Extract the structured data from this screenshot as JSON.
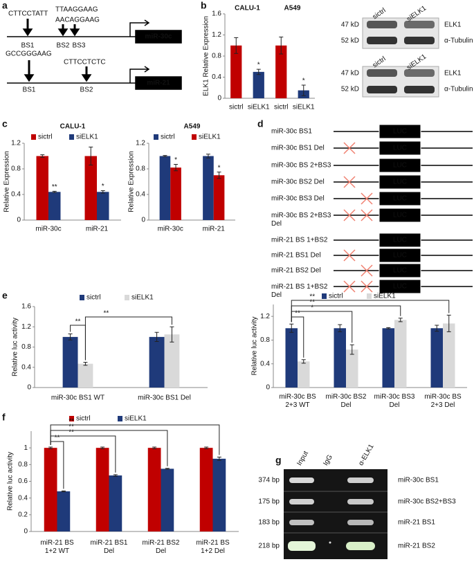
{
  "panel_labels": [
    "a",
    "b",
    "c",
    "d",
    "e",
    "f",
    "g"
  ],
  "panel_a": {
    "genes": [
      "miR-30c",
      "miR-21"
    ],
    "sequences": [
      "CTTCCTATT",
      "TTAAGGAAG",
      "AACAGGAAG",
      "GCCGGGAAG",
      "CTTCCTCTC"
    ],
    "sites": [
      "BS1",
      "BS2",
      "BS3",
      "BS1",
      "BS2"
    ]
  },
  "blots": {
    "lanes": [
      "sictrl",
      "siELK1"
    ],
    "sizes": [
      "47 kD",
      "52 kD"
    ],
    "proteins": [
      "ELK1",
      "α-Tubulin"
    ]
  },
  "panel_d": {
    "luc": "LUC",
    "constructs": [
      "miR-30c BS1",
      "miR-30c BS1 Del",
      "miR-30c BS 2+BS3",
      "miR-30c BS2 Del",
      "miR-30c BS3 Del",
      "miR-30c BS 2+BS3 Del",
      "miR-21 BS 1+BS2",
      "miR-21 BS1 Del",
      "miR-21 BS2 Del",
      "miR-21 BS 1+BS2 Del"
    ]
  },
  "panel_g": {
    "lanes": [
      "Input",
      "IgG",
      "α-ELK1"
    ],
    "sizes": [
      "374 bp",
      "175 bp",
      "183 bp",
      "218 bp"
    ],
    "targets": [
      "miR-30c BS1",
      "miR-30c BS2+BS3",
      "miR-21 BS1",
      "miR-21 BS2"
    ]
  },
  "chart_data": [
    {
      "type": "bar",
      "y_label": "ELK1 Relative Expression",
      "groups": [
        "CALU-1",
        "A549"
      ],
      "categories": [
        "sictrl",
        "siELK1",
        "sictrl",
        "siELK1"
      ],
      "values": [
        1.0,
        0.5,
        1.0,
        0.15
      ],
      "errors": [
        0.15,
        0.05,
        0.16,
        0.1
      ],
      "colors": [
        "#c00000",
        "#1f3a7a",
        "#c00000",
        "#1f3a7a"
      ],
      "ylim": [
        0,
        1.6
      ],
      "yticks": [
        0,
        0.4,
        0.8,
        1.2,
        1.6
      ],
      "annotations": [
        "*",
        "*"
      ]
    },
    {
      "type": "bar",
      "title": "CALU-1",
      "y_label": "Relative Expression",
      "categories": [
        "miR-30c",
        "miR-21"
      ],
      "series": [
        {
          "name": "sictrl",
          "color": "#c00000",
          "values": [
            1.0,
            1.0
          ],
          "errors": [
            0.02,
            0.14
          ]
        },
        {
          "name": "siELK1",
          "color": "#1f3a7a",
          "values": [
            0.44,
            0.44
          ],
          "errors": [
            0.01,
            0.02
          ]
        }
      ],
      "ylim": [
        0,
        1.2
      ],
      "yticks": [
        0,
        0.4,
        0.8,
        1.2
      ],
      "annotations": [
        "**",
        "*"
      ]
    },
    {
      "type": "bar",
      "title": "A549",
      "y_label": "Relative Expression",
      "categories": [
        "miR-30c",
        "miR-21"
      ],
      "series": [
        {
          "name": "sictrl",
          "color": "#1f3a7a",
          "values": [
            1.0,
            1.0
          ],
          "errors": [
            0.01,
            0.03
          ]
        },
        {
          "name": "siELK1",
          "color": "#c00000",
          "values": [
            0.82,
            0.7
          ],
          "errors": [
            0.05,
            0.05
          ]
        }
      ],
      "ylim": [
        0,
        1.2
      ],
      "yticks": [
        0,
        0.4,
        0.8,
        1.2
      ],
      "annotations": [
        "*",
        "*"
      ]
    },
    {
      "type": "bar",
      "y_label": "Relative luc activity",
      "categories": [
        "miR-30c BS1 WT",
        "miR-30c BS1 Del"
      ],
      "series": [
        {
          "name": "sictrl",
          "color": "#1f3a7a",
          "values": [
            1.0,
            1.0
          ],
          "errors": [
            0.06,
            0.09
          ]
        },
        {
          "name": "siELK1",
          "color": "#d9d9d9",
          "values": [
            0.47,
            1.05
          ],
          "errors": [
            0.03,
            0.15
          ]
        }
      ],
      "ylim": [
        0,
        1.6
      ],
      "yticks": [
        0,
        0.4,
        0.8,
        1.2,
        1.6
      ],
      "annotations": [
        "**",
        "**"
      ]
    },
    {
      "type": "bar",
      "y_label": "Relative luc activity",
      "categories": [
        "miR-30c BS 2+3 WT",
        "miR-30c BS2 Del",
        "miR-30c BS3 Del",
        "miR-30c BS 2+3 Del"
      ],
      "series": [
        {
          "name": "sictrl",
          "color": "#1f3a7a",
          "values": [
            1.0,
            1.0,
            1.0,
            1.0
          ],
          "errors": [
            0.07,
            0.06,
            0.01,
            0.05
          ]
        },
        {
          "name": "siELK1",
          "color": "#d9d9d9",
          "values": [
            0.44,
            0.64,
            1.14,
            1.08
          ],
          "errors": [
            0.03,
            0.08,
            0.03,
            0.14
          ]
        }
      ],
      "ylim": [
        0,
        1.4
      ],
      "yticks": [
        0,
        0.4,
        0.8,
        1.2
      ],
      "annotations": [
        "**",
        "*",
        "**",
        "**"
      ]
    },
    {
      "type": "bar",
      "y_label": "Relative luc activity",
      "categories": [
        "miR-21 BS 1+2 WT",
        "miR-21 BS1 Del",
        "miR-21 BS2 Del",
        "miR-21 BS 1+2 Del"
      ],
      "series": [
        {
          "name": "sictrl",
          "color": "#c00000",
          "values": [
            1.0,
            1.0,
            1.0,
            1.0
          ],
          "errors": [
            0.01,
            0.01,
            0.01,
            0.01
          ]
        },
        {
          "name": "siELK1",
          "color": "#1f3a7a",
          "values": [
            0.48,
            0.67,
            0.75,
            0.87
          ],
          "errors": [
            0.005,
            0.01,
            0.005,
            0.02
          ]
        }
      ],
      "ylim": [
        0,
        1.2
      ],
      "yticks": [
        0,
        0.2,
        0.4,
        0.6,
        0.8,
        1
      ],
      "annotations": [
        "**",
        "**",
        "**",
        "**"
      ]
    }
  ]
}
